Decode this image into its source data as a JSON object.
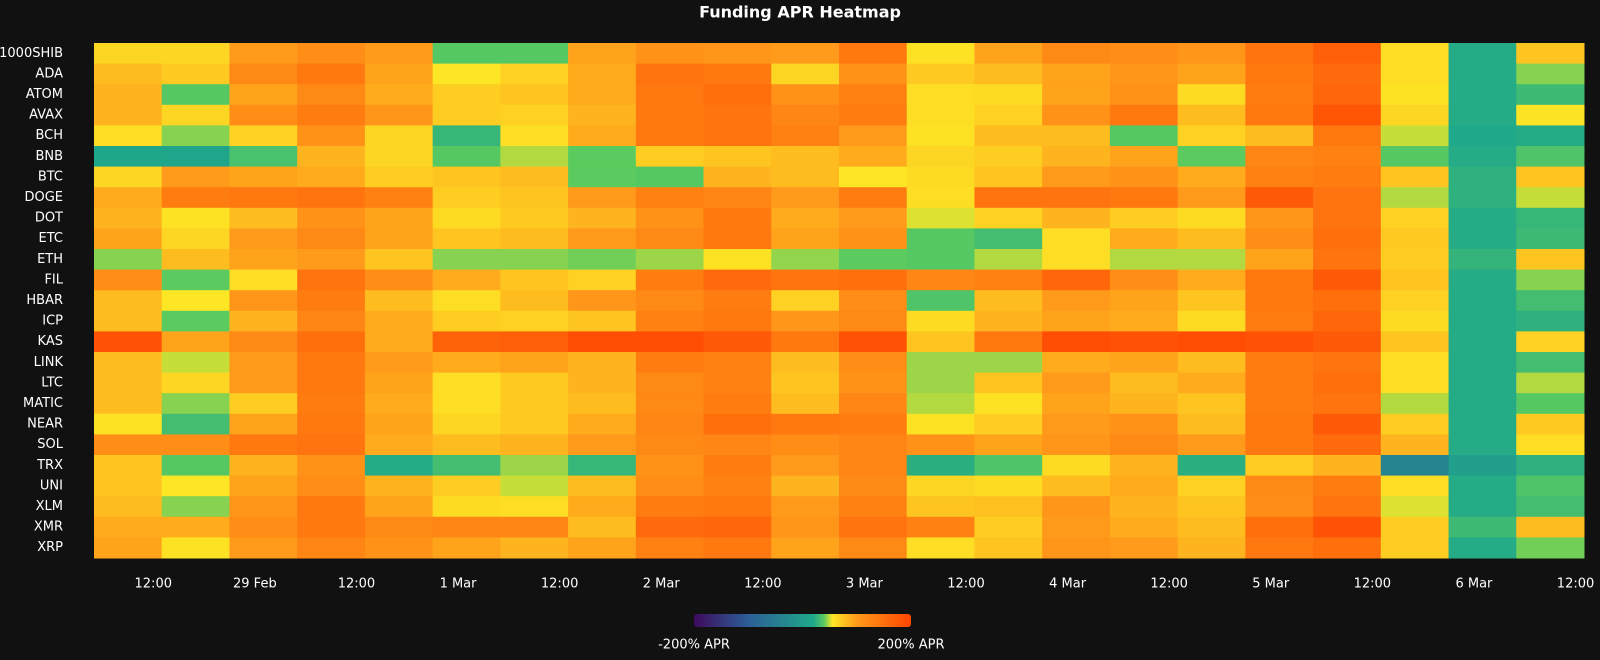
{
  "chart_data": {
    "type": "heatmap",
    "title": "Funding APR Heatmap",
    "x": [
      "02-28 09:00",
      "02-28 17:00",
      "02-29 01:00",
      "02-29 09:00",
      "02-29 17:00",
      "03-01 01:00",
      "03-01 09:00",
      "03-01 17:00",
      "03-02 01:00",
      "03-02 09:00",
      "03-02 17:00",
      "03-03 01:00",
      "03-03 09:00",
      "03-03 17:00",
      "03-04 01:00",
      "03-04 09:00",
      "03-04 17:00",
      "03-05 01:00",
      "03-05 09:00",
      "03-05 17:00",
      "03-06 01:00",
      "03-06 09:00"
    ],
    "xlim": [
      "02-28 05:00",
      "03-06 13:00"
    ],
    "xticks": [
      {
        "value": "02-28 12:00",
        "label": "12:00"
      },
      {
        "value": "02-29 00:00",
        "label": "29 Feb"
      },
      {
        "value": "02-29 12:00",
        "label": "12:00"
      },
      {
        "value": "03-01 00:00",
        "label": "1 Mar"
      },
      {
        "value": "03-01 12:00",
        "label": "12:00"
      },
      {
        "value": "03-02 00:00",
        "label": "2 Mar"
      },
      {
        "value": "03-02 12:00",
        "label": "12:00"
      },
      {
        "value": "03-03 00:00",
        "label": "3 Mar"
      },
      {
        "value": "03-03 12:00",
        "label": "12:00"
      },
      {
        "value": "03-04 00:00",
        "label": "4 Mar"
      },
      {
        "value": "03-04 12:00",
        "label": "12:00"
      },
      {
        "value": "03-05 00:00",
        "label": "5 Mar"
      },
      {
        "value": "03-05 12:00",
        "label": "12:00"
      },
      {
        "value": "03-06 00:00",
        "label": "6 Mar"
      },
      {
        "value": "03-06 12:00",
        "label": "12:00"
      }
    ],
    "categories": [
      "1000SHIB",
      "ADA",
      "ATOM",
      "AVAX",
      "BCH",
      "BNB",
      "BTC",
      "DOGE",
      "DOT",
      "ETC",
      "ETH",
      "FIL",
      "HBAR",
      "ICP",
      "KAS",
      "LINK",
      "LTC",
      "MATIC",
      "NEAR",
      "SOL",
      "TRX",
      "UNI",
      "XLM",
      "XMR",
      "XRP"
    ],
    "z": [
      [
        65,
        65,
        100,
        115,
        100,
        38,
        38,
        95,
        110,
        105,
        100,
        140,
        58,
        95,
        120,
        115,
        105,
        145,
        170,
        60,
        22,
        75
      ],
      [
        80,
        72,
        120,
        140,
        95,
        55,
        68,
        90,
        145,
        140,
        65,
        110,
        72,
        80,
        95,
        105,
        95,
        140,
        155,
        60,
        22,
        44
      ],
      [
        85,
        38,
        95,
        120,
        90,
        70,
        75,
        90,
        140,
        150,
        110,
        130,
        60,
        62,
        95,
        110,
        62,
        135,
        160,
        58,
        22,
        30
      ],
      [
        85,
        65,
        115,
        135,
        105,
        70,
        68,
        85,
        140,
        145,
        125,
        135,
        60,
        68,
        110,
        140,
        80,
        140,
        180,
        65,
        22,
        57
      ],
      [
        60,
        44,
        68,
        110,
        65,
        28,
        60,
        90,
        140,
        145,
        130,
        100,
        58,
        80,
        80,
        38,
        68,
        80,
        140,
        50,
        20,
        22
      ],
      [
        18,
        15,
        34,
        85,
        65,
        38,
        48,
        40,
        70,
        75,
        80,
        90,
        65,
        70,
        85,
        95,
        40,
        125,
        130,
        38,
        22,
        36
      ],
      [
        65,
        100,
        95,
        90,
        70,
        75,
        80,
        40,
        38,
        85,
        80,
        55,
        62,
        75,
        100,
        110,
        90,
        130,
        135,
        75,
        25,
        75
      ],
      [
        90,
        135,
        140,
        145,
        130,
        70,
        75,
        100,
        130,
        125,
        100,
        135,
        60,
        145,
        145,
        140,
        100,
        175,
        145,
        48,
        25,
        50
      ],
      [
        85,
        58,
        80,
        110,
        95,
        62,
        72,
        85,
        110,
        140,
        90,
        100,
        52,
        68,
        85,
        70,
        62,
        105,
        145,
        68,
        22,
        28
      ],
      [
        95,
        65,
        100,
        120,
        95,
        75,
        80,
        100,
        120,
        140,
        95,
        110,
        38,
        32,
        60,
        90,
        80,
        115,
        150,
        72,
        22,
        30
      ],
      [
        44,
        80,
        95,
        100,
        75,
        44,
        44,
        42,
        46,
        58,
        45,
        40,
        38,
        48,
        60,
        48,
        48,
        95,
        145,
        70,
        27,
        75
      ],
      [
        115,
        40,
        60,
        145,
        115,
        90,
        75,
        68,
        135,
        155,
        145,
        150,
        125,
        130,
        160,
        115,
        90,
        140,
        175,
        75,
        22,
        44
      ],
      [
        80,
        55,
        105,
        135,
        80,
        60,
        80,
        105,
        120,
        135,
        68,
        115,
        36,
        80,
        100,
        95,
        75,
        140,
        150,
        68,
        22,
        32
      ],
      [
        80,
        40,
        85,
        125,
        90,
        70,
        68,
        75,
        130,
        140,
        105,
        120,
        62,
        85,
        95,
        90,
        62,
        135,
        160,
        62,
        22,
        25
      ],
      [
        185,
        95,
        120,
        150,
        90,
        165,
        170,
        190,
        190,
        175,
        140,
        185,
        75,
        140,
        190,
        185,
        190,
        185,
        175,
        75,
        22,
        68
      ],
      [
        80,
        50,
        100,
        140,
        100,
        90,
        95,
        85,
        135,
        130,
        80,
        115,
        46,
        46,
        90,
        95,
        80,
        135,
        145,
        60,
        22,
        32
      ],
      [
        80,
        65,
        100,
        140,
        95,
        60,
        72,
        85,
        120,
        130,
        75,
        110,
        46,
        75,
        100,
        80,
        90,
        135,
        150,
        60,
        22,
        48
      ],
      [
        80,
        44,
        70,
        135,
        90,
        60,
        72,
        80,
        120,
        135,
        80,
        125,
        48,
        58,
        95,
        85,
        75,
        135,
        145,
        48,
        22,
        38
      ],
      [
        58,
        32,
        95,
        140,
        95,
        65,
        72,
        90,
        125,
        150,
        140,
        135,
        58,
        70,
        100,
        110,
        80,
        140,
        175,
        70,
        22,
        72
      ],
      [
        115,
        115,
        140,
        145,
        90,
        80,
        85,
        100,
        120,
        125,
        115,
        125,
        110,
        95,
        105,
        120,
        100,
        140,
        155,
        85,
        22,
        60
      ],
      [
        75,
        38,
        85,
        110,
        22,
        32,
        46,
        28,
        110,
        135,
        100,
        125,
        24,
        36,
        62,
        85,
        24,
        70,
        85,
        -40,
        5,
        25
      ],
      [
        75,
        55,
        95,
        115,
        85,
        70,
        50,
        80,
        115,
        130,
        85,
        120,
        65,
        62,
        80,
        90,
        68,
        120,
        135,
        60,
        22,
        36
      ],
      [
        80,
        44,
        105,
        140,
        95,
        62,
        60,
        90,
        135,
        140,
        100,
        130,
        75,
        78,
        105,
        85,
        75,
        115,
        145,
        52,
        22,
        32
      ],
      [
        90,
        90,
        115,
        140,
        120,
        125,
        125,
        80,
        155,
        160,
        105,
        145,
        130,
        70,
        100,
        90,
        80,
        150,
        185,
        70,
        30,
        80
      ],
      [
        95,
        58,
        100,
        125,
        110,
        95,
        85,
        95,
        130,
        140,
        95,
        120,
        60,
        75,
        105,
        100,
        85,
        140,
        150,
        70,
        22,
        42
      ]
    ],
    "zlim": [
      -200,
      200
    ],
    "colorscale": [
      [
        -200,
        "#3d0a5c"
      ],
      [
        -100,
        "#2c5e96"
      ],
      [
        20,
        "#1fa88a"
      ],
      [
        40,
        "#5ccb5f"
      ],
      [
        55,
        "#fde725"
      ],
      [
        100,
        "#ff9a1a"
      ],
      [
        200,
        "#ff4500"
      ]
    ],
    "colorbar_ticks": [
      {
        "value": -200,
        "label": "-200% APR"
      },
      {
        "value": 200,
        "label": "200% APR"
      }
    ]
  }
}
